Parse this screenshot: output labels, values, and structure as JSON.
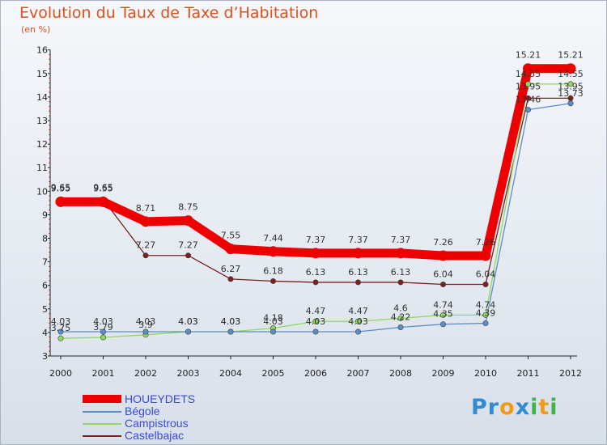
{
  "chart_data": {
    "type": "line",
    "title": "Evolution du Taux de Taxe d’Habitation",
    "unit": "(en %)",
    "x": [
      "2000",
      "2001",
      "2002",
      "2003",
      "2004",
      "2005",
      "2006",
      "2007",
      "2008",
      "2009",
      "2010",
      "2011",
      "2012"
    ],
    "ylim": [
      3,
      16
    ],
    "yticks": [
      "3",
      "4",
      "5",
      "6",
      "7",
      "8",
      "9",
      "10",
      "11",
      "12",
      "13",
      "14",
      "15",
      "16"
    ],
    "grid": false,
    "legend_position": "bottom-left",
    "series": [
      {
        "name": "HOUEYDETS",
        "color": "#ee0000",
        "values": [
          9.55,
          9.55,
          8.71,
          8.75,
          7.55,
          7.44,
          7.37,
          7.37,
          7.37,
          7.26,
          7.26,
          15.21,
          15.21
        ],
        "labels": [
          "9.55",
          "9.55",
          "8.71",
          "8.75",
          "7.55",
          "7.44",
          "7.37",
          "7.37",
          "7.37",
          "7.26",
          "7.26",
          "15.21",
          "15.21"
        ]
      },
      {
        "name": "Bégole",
        "color": "#5b8ec9",
        "values": [
          4.03,
          4.03,
          4.03,
          4.03,
          4.03,
          4.03,
          4.03,
          4.03,
          4.22,
          4.35,
          4.39,
          13.46,
          13.73
        ],
        "labels": [
          "4.03",
          "4.03",
          "4.03",
          "4.03",
          "4.03",
          "4.03",
          "4.03",
          "4.03",
          "4.22",
          "4.35",
          "4.39",
          "13.46",
          "13.73"
        ]
      },
      {
        "name": "Campistrous",
        "color": "#8fd95c",
        "values": [
          3.75,
          3.79,
          3.9,
          4.03,
          4.03,
          4.18,
          4.47,
          4.47,
          4.6,
          4.74,
          4.74,
          14.55,
          14.55
        ],
        "labels": [
          "3.75",
          "3.79",
          "3.9",
          "4.03",
          "4.03",
          "4.18",
          "4.47",
          "4.47",
          "4.6",
          "4.74",
          "4.74",
          "14.55",
          "14.55"
        ]
      },
      {
        "name": "Castelbajac",
        "color": "#7a2020",
        "values": [
          9.65,
          9.65,
          7.27,
          7.27,
          6.27,
          6.18,
          6.13,
          6.13,
          6.13,
          6.04,
          6.04,
          13.95,
          13.95
        ],
        "labels": [
          "9.65",
          "9.65",
          "7.27",
          "7.27",
          "6.27",
          "6.18",
          "6.13",
          "6.13",
          "6.13",
          "6.04",
          "6.04",
          "13.95",
          "13.95"
        ]
      }
    ]
  },
  "logo": {
    "letters": [
      "P",
      "r",
      "o",
      "x",
      "i",
      "t",
      "i"
    ],
    "colors": [
      "#2f8bd6",
      "#2f8bd6",
      "#f29a1a",
      "#2f8bd6",
      "#3cb44a",
      "#f29a1a",
      "#3cb44a"
    ]
  }
}
